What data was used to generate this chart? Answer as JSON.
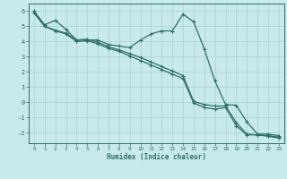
{
  "xlabel": "Humidex (Indice chaleur)",
  "bg_color": "#c8eaea",
  "line_color": "#2e6e6a",
  "grid_color": "#a8d0d0",
  "xlim": [
    -0.5,
    23.5
  ],
  "ylim": [
    -2.7,
    6.5
  ],
  "yticks": [
    -2,
    -1,
    0,
    1,
    2,
    3,
    4,
    5,
    6
  ],
  "xticks": [
    0,
    1,
    2,
    3,
    4,
    5,
    6,
    7,
    8,
    9,
    10,
    11,
    12,
    13,
    14,
    15,
    16,
    17,
    18,
    19,
    20,
    21,
    22,
    23
  ],
  "line1_x": [
    0,
    1,
    2,
    3,
    4,
    5,
    6,
    7,
    8,
    9,
    10,
    11,
    12,
    13,
    14,
    15,
    16,
    17,
    18,
    19,
    20,
    21,
    22,
    23
  ],
  "line1_y": [
    6.0,
    5.1,
    5.4,
    4.8,
    4.1,
    4.1,
    4.1,
    3.8,
    3.7,
    3.6,
    4.1,
    4.5,
    4.7,
    4.7,
    5.8,
    5.3,
    3.5,
    1.4,
    -0.15,
    -0.2,
    -1.3,
    -2.1,
    -2.1,
    -2.2
  ],
  "line2_x": [
    0,
    1,
    2,
    3,
    4,
    5,
    6,
    7,
    8,
    9,
    10,
    11,
    12,
    13,
    14,
    15,
    16,
    17,
    18,
    19,
    20,
    21,
    22,
    23
  ],
  "line2_y": [
    5.9,
    5.0,
    4.75,
    4.55,
    4.1,
    4.15,
    3.95,
    3.65,
    3.45,
    3.2,
    2.95,
    2.65,
    2.35,
    2.05,
    1.75,
    0.05,
    -0.15,
    -0.25,
    -0.25,
    -1.35,
    -2.1,
    -2.15,
    -2.2,
    -2.3
  ],
  "line3_x": [
    0,
    1,
    2,
    3,
    4,
    5,
    6,
    7,
    8,
    9,
    10,
    11,
    12,
    13,
    14,
    15,
    16,
    17,
    18,
    19,
    20,
    21,
    22,
    23
  ],
  "line3_y": [
    5.9,
    5.0,
    4.7,
    4.5,
    4.0,
    4.05,
    3.85,
    3.55,
    3.35,
    3.05,
    2.75,
    2.45,
    2.15,
    1.85,
    1.55,
    -0.05,
    -0.35,
    -0.45,
    -0.35,
    -1.55,
    -2.15,
    -2.15,
    -2.25,
    -2.35
  ]
}
